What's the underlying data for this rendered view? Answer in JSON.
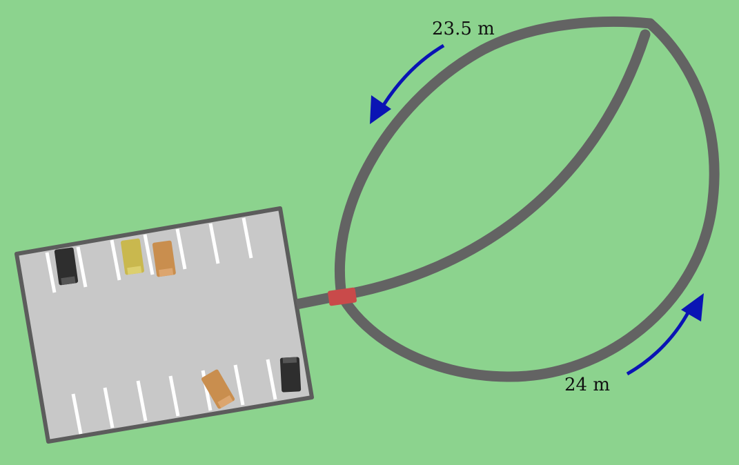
{
  "labels": {
    "upper_distance": "23.5 m",
    "lower_distance": "24 m"
  },
  "colors": {
    "grass": "#8cd38e",
    "road": "#636363",
    "lot_surface": "#c8c8c8",
    "lot_border": "#5c5c5c",
    "stall_lines": "#ffffff",
    "arrow": "#0a14b4",
    "red_car": "#c94a4a",
    "black_car": "#2e2e2e",
    "yellow_car": "#c9b84e",
    "orange_car": "#c98e4e"
  },
  "icons": {
    "direction_arrow": "curved-arrow-icon",
    "car": "car-icon"
  }
}
